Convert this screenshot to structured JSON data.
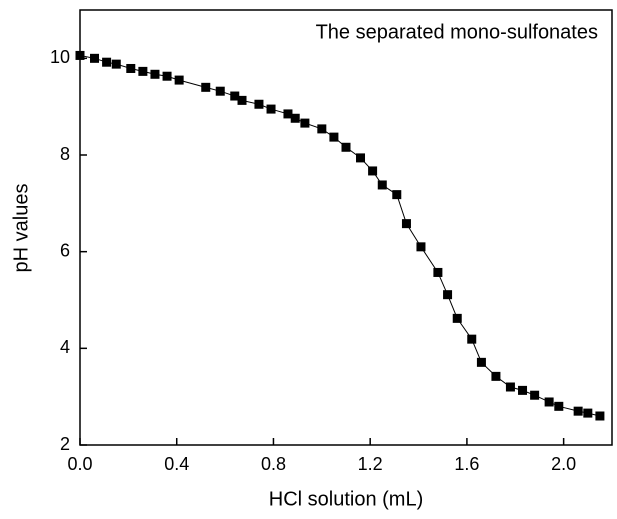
{
  "chart_data": {
    "type": "line",
    "annotation": "The separated  mono-sulfonates",
    "x_label": "HCl solution (mL)",
    "y_label": "pH values",
    "color": "#000000",
    "markers": "square",
    "x": [
      0,
      0.06,
      0.11,
      0.15,
      0.21,
      0.26,
      0.31,
      0.36,
      0.41,
      0.52,
      0.58,
      0.64,
      0.67,
      0.74,
      0.79,
      0.86,
      0.89,
      0.93,
      1.0,
      1.05,
      1.1,
      1.16,
      1.21,
      1.25,
      1.31,
      1.35,
      1.41,
      1.48,
      1.52,
      1.56,
      1.62,
      1.66,
      1.72,
      1.78,
      1.83,
      1.88,
      1.94,
      1.98,
      2.06,
      2.1,
      2.15
    ],
    "values": [
      10.06,
      10.0,
      9.92,
      9.88,
      9.79,
      9.73,
      9.67,
      9.63,
      9.55,
      9.4,
      9.32,
      9.22,
      9.13,
      9.05,
      8.95,
      8.85,
      8.76,
      8.66,
      8.54,
      8.37,
      8.16,
      7.94,
      7.67,
      7.38,
      7.18,
      6.58,
      6.1,
      5.57,
      5.11,
      4.62,
      4.19,
      3.71,
      3.42,
      3.2,
      3.13,
      3.03,
      2.89,
      2.8,
      2.7,
      2.66,
      2.6
    ],
    "xlim": [
      0,
      2.2
    ],
    "xticks": [
      {
        "value": 0,
        "label": "0.0"
      },
      0.4,
      0.8,
      1.2,
      1.6,
      {
        "value": 2,
        "label": "2.0"
      }
    ],
    "ylim": [
      2,
      11
    ],
    "yticks": [
      2,
      4,
      6,
      8,
      10
    ]
  }
}
